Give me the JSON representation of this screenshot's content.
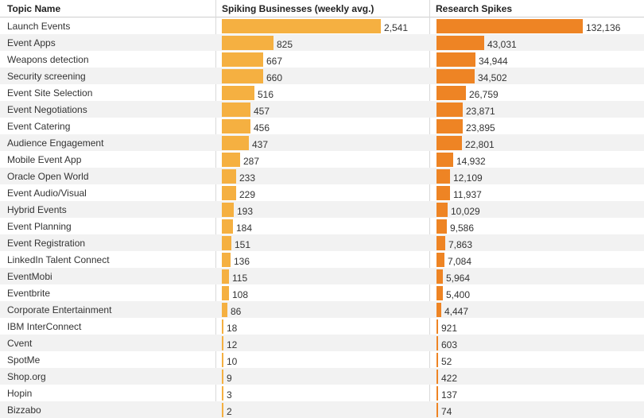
{
  "chart_data": {
    "type": "table",
    "columns": [
      "Topic Name",
      "Spiking Businesses (weekly avg.)",
      "Research Spikes"
    ],
    "colors": {
      "col1_bar": "#f5b041",
      "col2_bar": "#ee8424"
    },
    "rows": [
      {
        "topic": "Launch Events",
        "spiking": 2541,
        "research": 132136,
        "spiking_label": "2,541",
        "research_label": "132,136"
      },
      {
        "topic": "Event Apps",
        "spiking": 825,
        "research": 43031,
        "spiking_label": "825",
        "research_label": "43,031"
      },
      {
        "topic": "Weapons detection",
        "spiking": 667,
        "research": 34944,
        "spiking_label": "667",
        "research_label": "34,944"
      },
      {
        "topic": "Security screening",
        "spiking": 660,
        "research": 34502,
        "spiking_label": "660",
        "research_label": "34,502"
      },
      {
        "topic": "Event Site Selection",
        "spiking": 516,
        "research": 26759,
        "spiking_label": "516",
        "research_label": "26,759"
      },
      {
        "topic": "Event Negotiations",
        "spiking": 457,
        "research": 23871,
        "spiking_label": "457",
        "research_label": "23,871"
      },
      {
        "topic": "Event Catering",
        "spiking": 456,
        "research": 23895,
        "spiking_label": "456",
        "research_label": "23,895"
      },
      {
        "topic": "Audience Engagement",
        "spiking": 437,
        "research": 22801,
        "spiking_label": "437",
        "research_label": "22,801"
      },
      {
        "topic": "Mobile Event App",
        "spiking": 287,
        "research": 14932,
        "spiking_label": "287",
        "research_label": "14,932"
      },
      {
        "topic": "Oracle Open World",
        "spiking": 233,
        "research": 12109,
        "spiking_label": "233",
        "research_label": "12,109"
      },
      {
        "topic": "Event Audio/Visual",
        "spiking": 229,
        "research": 11937,
        "spiking_label": "229",
        "research_label": "11,937"
      },
      {
        "topic": "Hybrid Events",
        "spiking": 193,
        "research": 10029,
        "spiking_label": "193",
        "research_label": "10,029"
      },
      {
        "topic": "Event Planning",
        "spiking": 184,
        "research": 9586,
        "spiking_label": "184",
        "research_label": "9,586"
      },
      {
        "topic": "Event Registration",
        "spiking": 151,
        "research": 7863,
        "spiking_label": "151",
        "research_label": "7,863"
      },
      {
        "topic": "LinkedIn Talent Connect",
        "spiking": 136,
        "research": 7084,
        "spiking_label": "136",
        "research_label": "7,084"
      },
      {
        "topic": "EventMobi",
        "spiking": 115,
        "research": 5964,
        "spiking_label": "115",
        "research_label": "5,964"
      },
      {
        "topic": "Eventbrite",
        "spiking": 108,
        "research": 5400,
        "spiking_label": "108",
        "research_label": "5,400"
      },
      {
        "topic": "Corporate Entertainment",
        "spiking": 86,
        "research": 4447,
        "spiking_label": "86",
        "research_label": "4,447"
      },
      {
        "topic": "IBM InterConnect",
        "spiking": 18,
        "research": 921,
        "spiking_label": "18",
        "research_label": "921"
      },
      {
        "topic": "Cvent",
        "spiking": 12,
        "research": 603,
        "spiking_label": "12",
        "research_label": "603"
      },
      {
        "topic": "SpotMe",
        "spiking": 10,
        "research": 52,
        "spiking_label": "10",
        "research_label": "52"
      },
      {
        "topic": "Shop.org",
        "spiking": 9,
        "research": 422,
        "spiking_label": "9",
        "research_label": "422"
      },
      {
        "topic": "Hopin",
        "spiking": 3,
        "research": 137,
        "spiking_label": "3",
        "research_label": "137"
      },
      {
        "topic": "Bizzabo",
        "spiking": 2,
        "research": 74,
        "spiking_label": "2",
        "research_label": "74"
      }
    ]
  }
}
